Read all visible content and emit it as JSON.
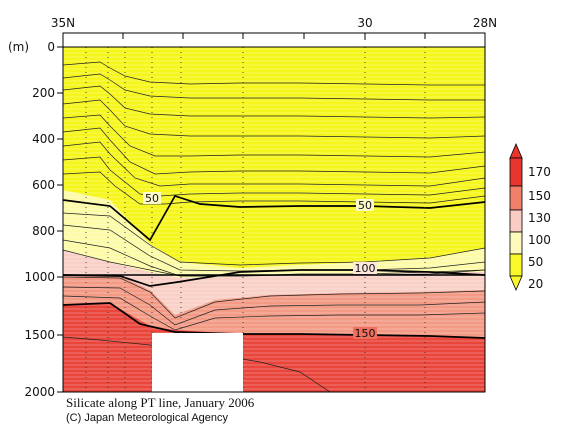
{
  "chart_data": {
    "type": "heatmap",
    "title": "Silicate along PT line, January 2006",
    "credit": "(C) Japan Meteorological Agency",
    "ylabel": "(m)",
    "x_ticks": [
      "35N",
      "30",
      "28N"
    ],
    "y_ticks_upper": [
      "0",
      "200",
      "400",
      "600",
      "800",
      "1000"
    ],
    "y_ticks_lower": [
      "1500",
      "2000"
    ],
    "contour_labels": [
      {
        "text": "50",
        "lat": 33.2,
        "depth": 670
      },
      {
        "text": "50",
        "lat": 30.0,
        "depth": 690
      },
      {
        "text": "100",
        "lat": 30.0,
        "depth": 965
      },
      {
        "text": "150",
        "lat": 30.0,
        "depth": 1500
      }
    ],
    "colorbar": {
      "levels": [
        "170",
        "150",
        "130",
        "100",
        "50",
        "20"
      ],
      "colors": [
        "#e8362f",
        "#f0806a",
        "#f9ccc4",
        "#fefabe",
        "#f8f82a"
      ]
    }
  }
}
